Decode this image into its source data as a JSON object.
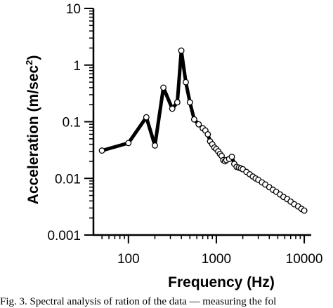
{
  "chart_data": {
    "type": "line",
    "title": "",
    "xlabel": "Frequency (Hz)",
    "ylabel_main": "Acceleration (m/sec",
    "ylabel_sup": "2",
    "ylabel_close": ")",
    "x_scale": "log",
    "y_scale": "log",
    "xlim": [
      40,
      12000
    ],
    "ylim": [
      0.001,
      10
    ],
    "grid": false,
    "legend": "none",
    "x_ticks": [
      {
        "value": 100,
        "label": "100"
      },
      {
        "value": 1000,
        "label": "1000"
      },
      {
        "value": 10000,
        "label": "10000"
      }
    ],
    "y_ticks": [
      {
        "value": 0.001,
        "label": "0.001"
      },
      {
        "value": 0.01,
        "label": "0.01"
      },
      {
        "value": 0.1,
        "label": "0.1"
      },
      {
        "value": 1,
        "label": "1"
      },
      {
        "value": 10,
        "label": "10"
      }
    ],
    "series": [
      {
        "line_color": "#000000",
        "marker": "open-circle",
        "x": [
          50,
          100,
          160,
          200,
          250,
          315,
          360,
          400,
          450,
          500,
          560,
          630,
          700,
          750,
          800,
          850,
          900,
          950,
          1000,
          1050,
          1100,
          1150,
          1200,
          1250,
          1300,
          1400,
          1500,
          1600,
          1700,
          1800,
          1900,
          2000,
          2200,
          2400,
          2600,
          2800,
          3000,
          3300,
          3600,
          4000,
          4400,
          4800,
          5300,
          5800,
          6400,
          7000,
          7700,
          8500,
          9300,
          10000
        ],
        "y": [
          0.031,
          0.042,
          0.12,
          0.038,
          0.4,
          0.17,
          0.22,
          1.8,
          0.5,
          0.22,
          0.11,
          0.09,
          0.077,
          0.07,
          0.06,
          0.045,
          0.04,
          0.035,
          0.033,
          0.03,
          0.027,
          0.025,
          0.021,
          0.02,
          0.021,
          0.022,
          0.024,
          0.018,
          0.016,
          0.0155,
          0.015,
          0.0145,
          0.013,
          0.0118,
          0.0108,
          0.01,
          0.0094,
          0.0085,
          0.0078,
          0.007,
          0.0063,
          0.0058,
          0.0052,
          0.0047,
          0.0043,
          0.0039,
          0.0035,
          0.0032,
          0.0029,
          0.0027
        ]
      }
    ]
  },
  "caption": "Fig. 3. Spectral analysis of ration of the data — measuring the fol"
}
